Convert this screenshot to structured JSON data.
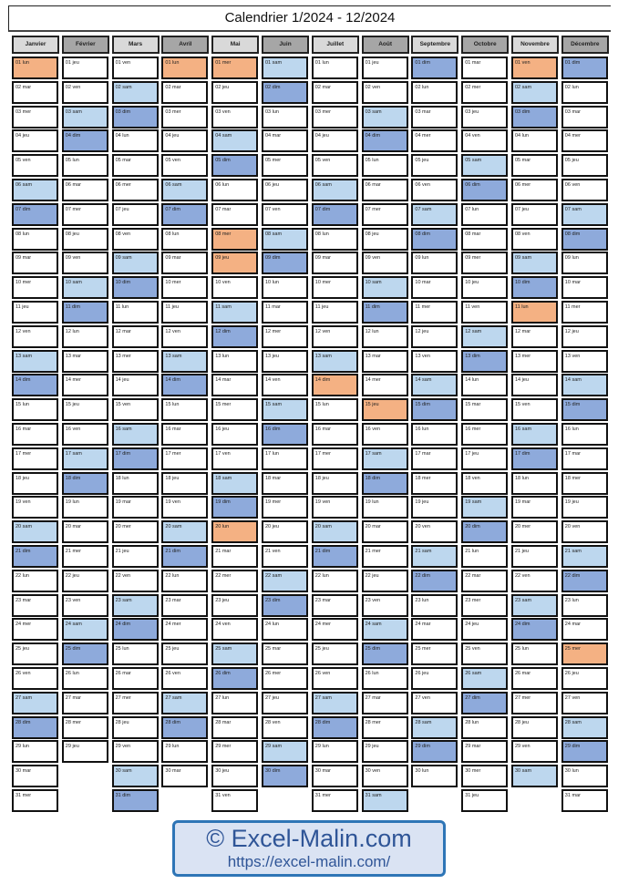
{
  "title": "Calendrier 1/2024 - 12/2024",
  "colors": {
    "holiday": "#f4b183",
    "saturday": "#bdd7ee",
    "sunday": "#8eaadb",
    "header_light": "#d9d9d9",
    "header_dark": "#a6a6a6"
  },
  "watermark": {
    "line1": "© Excel-Malin.com",
    "line2": "https://excel-malin.com/"
  },
  "months": [
    {
      "name": "Janvier",
      "holidays": [
        1
      ],
      "days": [
        "01 lun",
        "02 mar",
        "03 mer",
        "04 jeu",
        "05 ven",
        "06 sam",
        "07 dim",
        "08 lun",
        "09 mar",
        "10 mer",
        "11 jeu",
        "12 ven",
        "13 sam",
        "14 dim",
        "15 lun",
        "16 mar",
        "17 mer",
        "18 jeu",
        "19 ven",
        "20 sam",
        "21 dim",
        "22 lun",
        "23 mar",
        "24 mer",
        "25 jeu",
        "26 ven",
        "27 sam",
        "28 dim",
        "29 lun",
        "30 mar",
        "31 mer"
      ]
    },
    {
      "name": "Février",
      "holidays": [],
      "days": [
        "01 jeu",
        "02 ven",
        "03 sam",
        "04 dim",
        "05 lun",
        "06 mar",
        "07 mer",
        "08 jeu",
        "09 ven",
        "10 sam",
        "11 dim",
        "12 lun",
        "13 mar",
        "14 mer",
        "15 jeu",
        "16 ven",
        "17 sam",
        "18 dim",
        "19 lun",
        "20 mar",
        "21 mer",
        "22 jeu",
        "23 ven",
        "24 sam",
        "25 dim",
        "26 lun",
        "27 mar",
        "28 mer",
        "29 jeu"
      ]
    },
    {
      "name": "Mars",
      "holidays": [],
      "days": [
        "01 ven",
        "02 sam",
        "03 dim",
        "04 lun",
        "05 mar",
        "06 mer",
        "07 jeu",
        "08 ven",
        "09 sam",
        "10 dim",
        "11 lun",
        "12 mar",
        "13 mer",
        "14 jeu",
        "15 ven",
        "16 sam",
        "17 dim",
        "18 lun",
        "19 mar",
        "20 mer",
        "21 jeu",
        "22 ven",
        "23 sam",
        "24 dim",
        "25 lun",
        "26 mar",
        "27 mer",
        "28 jeu",
        "29 ven",
        "30 sam",
        "31 dim"
      ]
    },
    {
      "name": "Avril",
      "holidays": [
        1
      ],
      "days": [
        "01 lun",
        "02 mar",
        "03 mer",
        "04 jeu",
        "05 ven",
        "06 sam",
        "07 dim",
        "08 lun",
        "09 mar",
        "10 mer",
        "11 jeu",
        "12 ven",
        "13 sam",
        "14 dim",
        "15 lun",
        "16 mar",
        "17 mer",
        "18 jeu",
        "19 ven",
        "20 sam",
        "21 dim",
        "22 lun",
        "23 mar",
        "24 mer",
        "25 jeu",
        "26 ven",
        "27 sam",
        "28 dim",
        "29 lun",
        "30 mar"
      ]
    },
    {
      "name": "Mai",
      "holidays": [
        1,
        8,
        9,
        20
      ],
      "days": [
        "01 mer",
        "02 jeu",
        "03 ven",
        "04 sam",
        "05 dim",
        "06 lun",
        "07 mar",
        "08 mer",
        "09 jeu",
        "10 ven",
        "11 sam",
        "12 dim",
        "13 lun",
        "14 mar",
        "15 mer",
        "16 jeu",
        "17 ven",
        "18 sam",
        "19 dim",
        "20 lun",
        "21 mar",
        "22 mer",
        "23 jeu",
        "24 ven",
        "25 sam",
        "26 dim",
        "27 lun",
        "28 mar",
        "29 mer",
        "30 jeu",
        "31 ven"
      ]
    },
    {
      "name": "Juin",
      "holidays": [],
      "days": [
        "01 sam",
        "02 dim",
        "03 lun",
        "04 mar",
        "05 mer",
        "06 jeu",
        "07 ven",
        "08 sam",
        "09 dim",
        "10 lun",
        "11 mar",
        "12 mer",
        "13 jeu",
        "14 ven",
        "15 sam",
        "16 dim",
        "17 lun",
        "18 mar",
        "19 mer",
        "20 jeu",
        "21 ven",
        "22 sam",
        "23 dim",
        "24 lun",
        "25 mar",
        "26 mer",
        "27 jeu",
        "28 ven",
        "29 sam",
        "30 dim"
      ]
    },
    {
      "name": "Juillet",
      "holidays": [
        14
      ],
      "days": [
        "01 lun",
        "02 mar",
        "03 mer",
        "04 jeu",
        "05 ven",
        "06 sam",
        "07 dim",
        "08 lun",
        "09 mar",
        "10 mer",
        "11 jeu",
        "12 ven",
        "13 sam",
        "14 dim",
        "15 lun",
        "16 mar",
        "17 mer",
        "18 jeu",
        "19 ven",
        "20 sam",
        "21 dim",
        "22 lun",
        "23 mar",
        "24 mer",
        "25 jeu",
        "26 ven",
        "27 sam",
        "28 dim",
        "29 lun",
        "30 mar",
        "31 mer"
      ]
    },
    {
      "name": "Août",
      "holidays": [
        15
      ],
      "days": [
        "01 jeu",
        "02 ven",
        "03 sam",
        "04 dim",
        "05 lun",
        "06 mar",
        "07 mer",
        "08 jeu",
        "09 ven",
        "10 sam",
        "11 dim",
        "12 lun",
        "13 mar",
        "14 mer",
        "15 jeu",
        "16 ven",
        "17 sam",
        "18 dim",
        "19 lun",
        "20 mar",
        "21 mer",
        "22 jeu",
        "23 ven",
        "24 sam",
        "25 dim",
        "26 lun",
        "27 mar",
        "28 mer",
        "29 jeu",
        "30 ven",
        "31 sam"
      ]
    },
    {
      "name": "Septembre",
      "holidays": [],
      "days": [
        "01 dim",
        "02 lun",
        "03 mar",
        "04 mer",
        "05 jeu",
        "06 ven",
        "07 sam",
        "08 dim",
        "09 lun",
        "10 mar",
        "11 mer",
        "12 jeu",
        "13 ven",
        "14 sam",
        "15 dim",
        "16 lun",
        "17 mar",
        "18 mer",
        "19 jeu",
        "20 ven",
        "21 sam",
        "22 dim",
        "23 lun",
        "24 mar",
        "25 mer",
        "26 jeu",
        "27 ven",
        "28 sam",
        "29 dim",
        "30 lun"
      ]
    },
    {
      "name": "Octobre",
      "holidays": [],
      "days": [
        "01 mar",
        "02 mer",
        "03 jeu",
        "04 ven",
        "05 sam",
        "06 dim",
        "07 lun",
        "08 mar",
        "09 mer",
        "10 jeu",
        "11 ven",
        "12 sam",
        "13 dim",
        "14 lun",
        "15 mar",
        "16 mer",
        "17 jeu",
        "18 ven",
        "19 sam",
        "20 dim",
        "21 lun",
        "22 mar",
        "23 mer",
        "24 jeu",
        "25 ven",
        "26 sam",
        "27 dim",
        "28 lun",
        "29 mar",
        "30 mer",
        "31 jeu"
      ]
    },
    {
      "name": "Novembre",
      "holidays": [
        1,
        11
      ],
      "days": [
        "01 ven",
        "02 sam",
        "03 dim",
        "04 lun",
        "05 mar",
        "06 mer",
        "07 jeu",
        "08 ven",
        "09 sam",
        "10 dim",
        "11 lun",
        "12 mar",
        "13 mer",
        "14 jeu",
        "15 ven",
        "16 sam",
        "17 dim",
        "18 lun",
        "19 mar",
        "20 mer",
        "21 jeu",
        "22 ven",
        "23 sam",
        "24 dim",
        "25 lun",
        "26 mar",
        "27 mer",
        "28 jeu",
        "29 ven",
        "30 sam"
      ]
    },
    {
      "name": "Décembre",
      "holidays": [
        25
      ],
      "days": [
        "01 dim",
        "02 lun",
        "03 mar",
        "04 mer",
        "05 jeu",
        "06 ven",
        "07 sam",
        "08 dim",
        "09 lun",
        "10 mar",
        "11 mer",
        "12 jeu",
        "13 ven",
        "14 sam",
        "15 dim",
        "16 lun",
        "17 mar",
        "18 mer",
        "19 jeu",
        "20 ven",
        "21 sam",
        "22 dim",
        "23 lun",
        "24 mar",
        "25 mer",
        "26 jeu",
        "27 ven",
        "28 sam",
        "29 dim",
        "30 lun",
        "31 mar"
      ]
    }
  ]
}
